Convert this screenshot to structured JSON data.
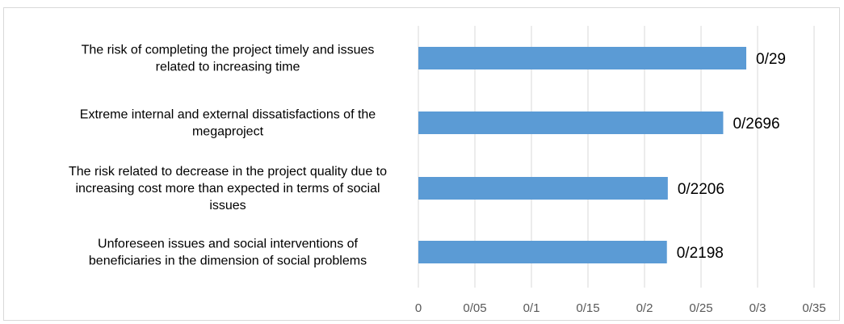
{
  "chart_data": {
    "type": "bar",
    "orientation": "horizontal",
    "categories": [
      [
        "The risk of completing the project timely and issues",
        "related to increasing time"
      ],
      [
        "Extreme internal and external dissatisfactions of the",
        "megaproject"
      ],
      [
        "The risk related to decrease in the project quality due to",
        "increasing cost more than expected in terms of social",
        "issues"
      ],
      [
        "Unforeseen issues and social interventions of",
        "beneficiaries in the dimension of social problems"
      ]
    ],
    "values": [
      0.29,
      0.2696,
      0.2206,
      0.2198
    ],
    "data_labels": [
      "0/29",
      "0/2696",
      "0/2206",
      "0/2198"
    ],
    "x_ticks": [
      0,
      0.05,
      0.1,
      0.15,
      0.2,
      0.25,
      0.3,
      0.35
    ],
    "x_tick_labels": [
      "0",
      "0/05",
      "0/1",
      "0/15",
      "0/2",
      "0/25",
      "0/3",
      "0/35"
    ],
    "xlim": [
      0,
      0.35
    ],
    "grid": "vertical",
    "bar_color": "#5b9bd5",
    "grid_color": "#d9d9d9",
    "title": "",
    "xlabel": "",
    "ylabel": ""
  }
}
